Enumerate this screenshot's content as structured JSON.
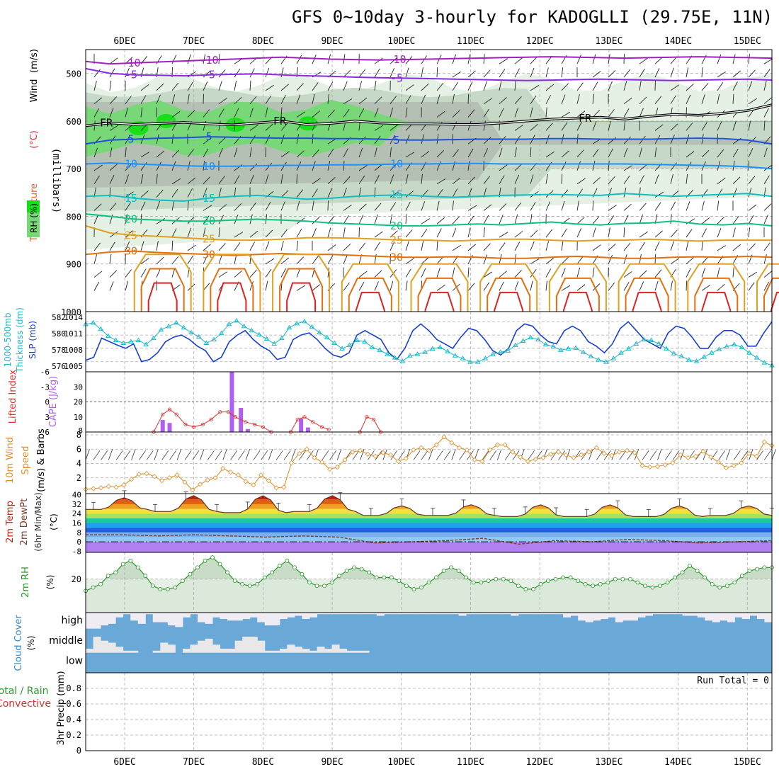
{
  "title": "GFS 0~10day 3-hourly for KADOGLLI (29.75E, 11N)",
  "date_labels": [
    "6DEC",
    "7DEC",
    "8DEC",
    "9DEC",
    "10DEC",
    "11DEC",
    "12DEC",
    "13DEC",
    "14DEC",
    "15DEC"
  ],
  "run_total": "Run Total = 0",
  "colors": {
    "rh_light": "#e6f1e6",
    "rh_mid": "#c6d9c6",
    "rh_gray": "#b4c0b4",
    "rh_green": "#78d878",
    "rh_bright": "#18e018",
    "temp_m10": "#a020c0",
    "temp_m5": "#8a2be2",
    "freezing": "#000000",
    "temp_5": "#1e50e0",
    "temp_10": "#1e90ff",
    "temp_15": "#10c0c0",
    "temp_20": "#10c080",
    "temp_25": "#e0a020",
    "temp_30": "#e07010",
    "temp_35": "#e02020",
    "slp": "#1a3fd0",
    "thickness": "#20b8c8",
    "cape": "#b060f0",
    "lifted": "#e03030",
    "wind_speed": "#e0902a",
    "rh2m": "#2a9a2a",
    "cloud": "#6aa8d8",
    "cloud_clear": "#f0ecf4"
  },
  "chart_data": [
    {
      "panel": "upper-air",
      "type": "contour",
      "ylabel_parts": [
        "Temperature",
        "(°C)",
        "Wind",
        "(m/s)"
      ],
      "ylabel_rh": "RH (%)",
      "ylabel_unit": "(millibars)",
      "y_ticks": [
        "500",
        "600",
        "700",
        "800",
        "900",
        "1000"
      ],
      "ylim": [
        450,
        1000
      ],
      "isotherms": [
        {
          "label": "-10",
          "pressure": [
            475,
            480,
            478,
            476,
            474,
            472,
            470,
            468,
            466,
            468,
            470,
            471,
            472,
            471,
            470,
            469,
            468,
            467,
            466,
            465,
            466,
            467,
            468,
            467,
            466,
            465,
            466,
            467,
            468
          ]
        },
        {
          "label": "-5",
          "pressure": [
            490,
            500,
            503,
            504,
            505,
            503,
            502,
            501,
            503,
            505,
            506,
            508,
            509,
            510,
            511,
            512,
            513,
            514,
            515,
            514,
            513,
            512,
            513,
            514,
            515,
            514,
            513,
            512,
            514
          ]
        },
        {
          "label": "FR",
          "pressure": [
            610,
            604,
            607,
            605,
            603,
            606,
            608,
            604,
            600,
            607,
            605,
            600,
            604,
            606,
            606,
            607,
            607,
            604,
            600,
            596,
            594,
            592,
            596,
            590,
            586,
            588,
            584,
            578,
            566
          ]
        },
        {
          "label": "5",
          "pressure": [
            648,
            640,
            638,
            636,
            635,
            633,
            634,
            635,
            636,
            636,
            637,
            637,
            638,
            640,
            640,
            639,
            638,
            638,
            638,
            637,
            637,
            638,
            638,
            638,
            637,
            636,
            637,
            640,
            648
          ]
        },
        {
          "label": "10",
          "pressure": [
            690,
            688,
            690,
            692,
            694,
            695,
            695,
            694,
            693,
            693,
            692,
            692,
            691,
            690,
            690,
            689,
            689,
            690,
            690,
            690,
            690,
            690,
            690,
            691,
            692,
            693,
            694,
            696,
            700
          ]
        },
        {
          "label": "15",
          "pressure": [
            758,
            756,
            762,
            766,
            768,
            762,
            758,
            756,
            760,
            764,
            762,
            758,
            756,
            755,
            758,
            760,
            758,
            756,
            755,
            754,
            755,
            756,
            752,
            755,
            758,
            756,
            754,
            752,
            758
          ]
        },
        {
          "label": "20",
          "pressure": [
            795,
            800,
            806,
            808,
            810,
            810,
            808,
            806,
            808,
            810,
            814,
            816,
            818,
            820,
            820,
            818,
            816,
            818,
            815,
            812,
            816,
            818,
            815,
            814,
            810,
            816,
            818,
            815,
            820
          ]
        },
        {
          "label": "25",
          "pressure": [
            820,
            835,
            840,
            842,
            845,
            848,
            850,
            850,
            848,
            845,
            845,
            846,
            848,
            850,
            850,
            852,
            850,
            848,
            848,
            850,
            852,
            850,
            850,
            848,
            850,
            852,
            850,
            850,
            850
          ]
        },
        {
          "label": "30",
          "pressure": [
            880,
            875,
            873,
            876,
            878,
            880,
            882,
            880,
            878,
            880,
            880,
            882,
            884,
            886,
            886,
            885,
            886,
            888,
            888,
            886,
            884,
            886,
            888,
            888,
            886,
            885,
            886,
            884,
            886
          ]
        }
      ],
      "rh_levels": [
        "30",
        "50",
        "70",
        "90"
      ]
    },
    {
      "panel": "slp-thickness",
      "type": "line",
      "ylabel_left": "Thickness (dm)",
      "ylabel_left_prefix": "1000-500mb",
      "ylabel_right": "SLP (mb)",
      "left_ticks": [
        "576",
        "578",
        "580",
        "582"
      ],
      "right_ticks": [
        "1005",
        "1008",
        "1011",
        "1014"
      ],
      "series": [
        {
          "name": "SLP",
          "axis": "right",
          "ylim": [
            1004,
            1015
          ],
          "values": [
            1005.3,
            1006,
            1010.3,
            1009.5,
            1008.7,
            1008,
            1009,
            1005,
            1005.5,
            1007,
            1009.5,
            1010.5,
            1011,
            1010,
            1008.5,
            1007.5,
            1005,
            1006,
            1009.5,
            1011,
            1012,
            1010,
            1008.5,
            1007.5,
            1005.5,
            1006,
            1010,
            1011,
            1011.5,
            1010,
            1008,
            1006.5,
            1006,
            1007,
            1011,
            1012,
            1011,
            1010,
            1007,
            1005.5,
            1008,
            1012,
            1013.5,
            1012,
            1010,
            1009,
            1008,
            1010.5,
            1012.5,
            1012,
            1010,
            1007.5,
            1006.5,
            1008,
            1012,
            1013.5,
            1013,
            1011,
            1009.5,
            1009,
            1012,
            1013,
            1012,
            1009.5,
            1008.5,
            1007,
            1009,
            1012.5,
            1014,
            1012,
            1010,
            1009,
            1008,
            1011.5,
            1013,
            1012.5,
            1010.5,
            1008,
            1008,
            1010.5,
            1012,
            1012,
            1011,
            1008.5,
            1008.5,
            1011.5,
            1014
          ]
        },
        {
          "name": "Thickness",
          "axis": "left",
          "ylim": [
            575.5,
            582.5
          ],
          "values": [
            581.5,
            581.7,
            580.8,
            579.8,
            579.2,
            578.8,
            579.0,
            579.2,
            578.6,
            579.5,
            580.7,
            581.2,
            581.7,
            581.0,
            580.3,
            579.7,
            578.8,
            579.3,
            580.2,
            581.5,
            582.0,
            581.2,
            580.6,
            580.0,
            579.4,
            578.7,
            579.5,
            581.0,
            581.6,
            581.9,
            581.1,
            580.3,
            579.6,
            578.8,
            578.0,
            578.5,
            579.2,
            579.0,
            578.2,
            577.8,
            577.2,
            576.7,
            576.2,
            577.0,
            577.2,
            577.5,
            578.0,
            578.2,
            577.6,
            577.0,
            576.6,
            576.1,
            576.1,
            576.6,
            577.2,
            577.5,
            577.7,
            578.5,
            579.1,
            579.6,
            579.3,
            578.6,
            578.3,
            577.8,
            578.0,
            578.1,
            577.5,
            576.9,
            576.4,
            576.1,
            576.6,
            577.4,
            578.0,
            578.7,
            579.3,
            579.2,
            578.7,
            578.0,
            577.3,
            576.9,
            576.4,
            576.2,
            576.8,
            577.4,
            577.9,
            578.3,
            578.6,
            578.2,
            577.4,
            576.7,
            576.0,
            575.6
          ]
        }
      ]
    },
    {
      "panel": "cape-lifted",
      "type": "bar+line",
      "ylabel_left": "Lifted Index",
      "ylabel_right": "CAPE (J/kg)",
      "left_ticks": [
        "-6",
        "-3",
        "0",
        "3",
        "6"
      ],
      "right_ticks": [
        "30",
        "20",
        "10"
      ],
      "cape_bars": [
        {
          "day": 0.55,
          "value": 8
        },
        {
          "day": 0.65,
          "value": 6
        },
        {
          "day": 1.55,
          "value": 40
        },
        {
          "day": 1.68,
          "value": 16
        },
        {
          "day": 1.78,
          "value": 2
        },
        {
          "day": 2.55,
          "value": 9
        },
        {
          "day": 2.65,
          "value": 3
        }
      ],
      "lifted_segments": [
        [
          {
            "day": 0.42,
            "v": 6
          },
          {
            "day": 0.55,
            "v": 2.5
          },
          {
            "day": 0.65,
            "v": 1.5
          },
          {
            "day": 0.75,
            "v": 2.5
          },
          {
            "day": 0.88,
            "v": 4.5
          },
          {
            "day": 1.0,
            "v": 5
          },
          {
            "day": 1.13,
            "v": 4.5
          },
          {
            "day": 1.25,
            "v": 3.5
          },
          {
            "day": 1.38,
            "v": 2
          },
          {
            "day": 1.5,
            "v": 2
          },
          {
            "day": 1.6,
            "v": 3
          },
          {
            "day": 1.75,
            "v": 4
          },
          {
            "day": 1.88,
            "v": 4.5
          },
          {
            "day": 2.0,
            "v": 5
          },
          {
            "day": 2.12,
            "v": 6
          }
        ],
        [
          {
            "day": 2.4,
            "v": 6
          },
          {
            "day": 2.5,
            "v": 3.5
          },
          {
            "day": 2.6,
            "v": 3
          },
          {
            "day": 2.72,
            "v": 4
          },
          {
            "day": 2.85,
            "v": 5
          },
          {
            "day": 2.95,
            "v": 5.5
          }
        ],
        [
          {
            "day": 3.4,
            "v": 6
          },
          {
            "day": 3.5,
            "v": 3
          },
          {
            "day": 3.6,
            "v": 3.5
          },
          {
            "day": 3.7,
            "v": 6
          }
        ]
      ],
      "reference_line": 0
    },
    {
      "panel": "10m-wind",
      "type": "line",
      "ylabel": "10m Wind",
      "ylabel_speed": "Speed",
      "ylabel_barbs": "(m/s) & Barbs",
      "y_ticks": [
        "2",
        "4",
        "6",
        "8"
      ],
      "ylim": [
        0,
        8
      ],
      "values": [
        0.4,
        0.5,
        0.6,
        0.8,
        0.7,
        1.0,
        1.8,
        2.5,
        2.6,
        2.2,
        1.6,
        2.0,
        2.4,
        1.4,
        0.3,
        1.1,
        1.7,
        2.0,
        3.3,
        2.8,
        2.4,
        1.5,
        1.0,
        2.4,
        1.6,
        0.6,
        0.7,
        4.1,
        5.4,
        6.0,
        4.8,
        4.2,
        3.2,
        3.5,
        4.5,
        5.6,
        5.8,
        5.3,
        5.0,
        5.5,
        5.2,
        4.3,
        4.7,
        5.9,
        6.2,
        5.8,
        6.6,
        7.7,
        6.9,
        6.2,
        5.9,
        4.5,
        4.3,
        5.9,
        6.6,
        6.6,
        5.6,
        4.9,
        4.3,
        4.6,
        4.8,
        5.3,
        5.6,
        5.2,
        4.8,
        5.2,
        5.6,
        6.2,
        5.4,
        5.1,
        5.6,
        5.8,
        5.5,
        3.7,
        3.5,
        3.6,
        3.8,
        4.1,
        5.2,
        4.8,
        5.0,
        5.7,
        4.9,
        4.2,
        3.4,
        3.7,
        4.1,
        5.4,
        5.0,
        7.0,
        6.5
      ]
    },
    {
      "panel": "2m-temp",
      "type": "area",
      "ylabel": "2m Temp",
      "ylabel_dew": "2m DewPt",
      "ylabel_range": "(6hr Min/Max)",
      "ylabel_unit": "(°C)",
      "y_ticks": [
        "-8",
        "0",
        "8",
        "16",
        "24",
        "32",
        "40"
      ],
      "ylim": [
        -9,
        41
      ],
      "temp_peaks": [
        38,
        40,
        40,
        40,
        31,
        32,
        32,
        32,
        31,
        31
      ],
      "temp_troughs": [
        27,
        25,
        24,
        25,
        22,
        22,
        21,
        21,
        21,
        22
      ],
      "dewpoint": [
        6,
        6,
        5,
        6,
        5,
        4,
        5,
        4,
        -1,
        0,
        1,
        3,
        -2,
        1,
        0,
        2,
        1,
        -1,
        0,
        1
      ]
    },
    {
      "panel": "2m-rh",
      "type": "line",
      "ylabel": "2m RH",
      "ylabel_unit": "(%)",
      "y_ticks": [
        "20"
      ],
      "ylim": [
        0,
        36
      ],
      "values": [
        13,
        15,
        17,
        22,
        24,
        29,
        31,
        27,
        22,
        16,
        14,
        14,
        15,
        19,
        23,
        27,
        31,
        33,
        29,
        24,
        19,
        17,
        16,
        17,
        21,
        24,
        28,
        31,
        27,
        23,
        18,
        16,
        16,
        18,
        22,
        25,
        27,
        26,
        24,
        21,
        21,
        21,
        19,
        16,
        14,
        15,
        18,
        21,
        25,
        27,
        25,
        21,
        18,
        18,
        19,
        20,
        20,
        19,
        16,
        14,
        14,
        17,
        19,
        20,
        21,
        21,
        19,
        17,
        16,
        17,
        18,
        20,
        20,
        20,
        18,
        16,
        15,
        16,
        18,
        21,
        24,
        28,
        25,
        21,
        17,
        15,
        16,
        18,
        22,
        25,
        26,
        27,
        27
      ]
    },
    {
      "panel": "cloud-cover",
      "type": "heatmap",
      "ylabel": "Cloud Cover",
      "ylabel_unit": "(%)",
      "rows": [
        "high",
        "middle",
        "low"
      ],
      "high_clear": [
        1,
        1,
        0.8,
        0.7,
        0.3,
        0.1,
        0.5,
        0.7,
        0.1,
        0.6,
        0.6,
        0.8,
        0.9,
        0.3,
        0.1,
        0.6,
        0.7,
        0.3,
        0.4,
        0.5,
        0.5,
        0.4,
        0.3,
        0.6,
        0.8,
        0.8,
        0.4,
        0.3,
        0.2,
        0.4,
        0.3,
        0.1,
        0.1,
        0.1,
        0.1,
        0.1,
        0.1,
        0.1,
        0.1,
        0.2,
        0.1,
        0.1,
        0.1,
        0.1,
        0.1,
        0.1,
        0.1,
        0.1,
        0.1,
        0.1,
        0.2,
        0.1,
        0.1,
        0.1,
        0.1,
        0.1,
        0.1,
        0.2,
        0.1,
        0.1,
        0.1,
        0.1,
        0.1,
        0.1,
        0.3,
        0.2,
        0.5,
        0.6,
        0.5,
        0.4,
        0.3,
        0.6,
        0.5,
        0.5,
        0.3,
        0.2,
        0.1,
        0.1,
        0.1,
        0.1,
        0.2,
        0.2,
        0.3,
        0.5,
        0.6,
        0.5,
        0.6,
        0.3,
        0.4,
        0.2,
        0.4,
        0.6
      ],
      "mid_clear": [
        0.2,
        0.8,
        0.6,
        0.5,
        0.3,
        0.1,
        0.1,
        0,
        0,
        0.1,
        0.5,
        0.4,
        0,
        0.2,
        0.4,
        0.6,
        0.7,
        0.4,
        0.2,
        0.2,
        0.6,
        0.8,
        0.8,
        0.6,
        0.1,
        0.1,
        0.2,
        0.4,
        0.3,
        0.2,
        0.1,
        0.3,
        0.2,
        0.4,
        0.2,
        0.1,
        0.1,
        0.1,
        0,
        0,
        0,
        0,
        0,
        0,
        0,
        0,
        0,
        0,
        0,
        0,
        0,
        0,
        0,
        0,
        0,
        0,
        0,
        0,
        0,
        0,
        0,
        0,
        0,
        0,
        0,
        0,
        0,
        0,
        0,
        0,
        0,
        0,
        0,
        0,
        0,
        0,
        0,
        0,
        0,
        0,
        0,
        0,
        0,
        0,
        0,
        0,
        0,
        0,
        0,
        0,
        0
      ]
    },
    {
      "panel": "precip",
      "type": "bar",
      "ylabel_total": "Total / Rain",
      "ylabel_conv": "Convective",
      "ylabel": "3hr Precip (mm)",
      "y_ticks": [
        "0",
        "0.2",
        "0.4",
        "0.6",
        "0.8"
      ],
      "ylim": [
        0,
        1.0
      ],
      "values": []
    }
  ]
}
